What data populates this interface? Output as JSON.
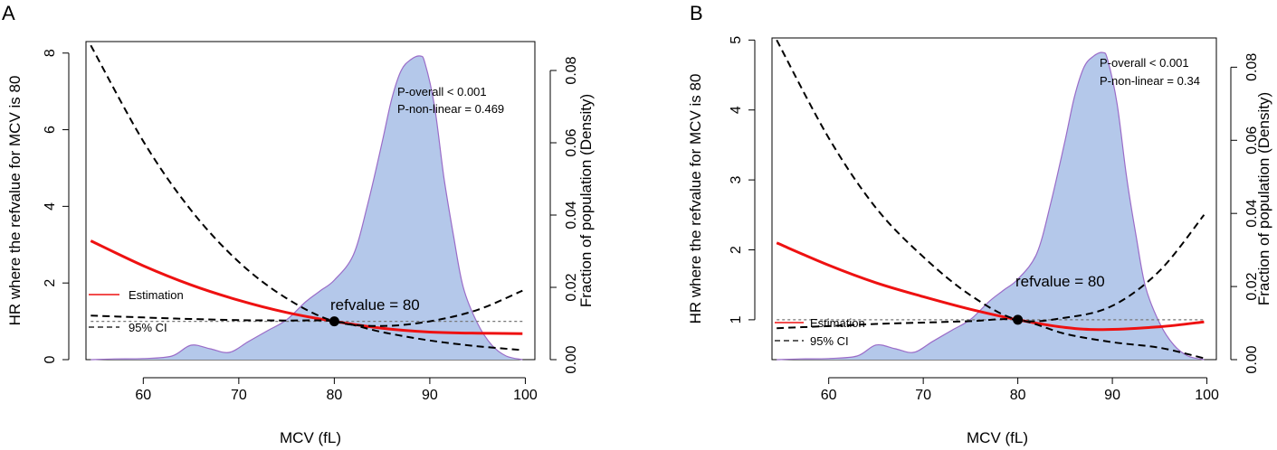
{
  "chart_data": [
    {
      "panel_label": "A",
      "type": "line",
      "xlabel": "MCV (fL)",
      "ylabel": "HR where the refvalue for MCV is 80",
      "y2label": "Fraction of population (Density)",
      "xlim": [
        54,
        101
      ],
      "ylim": [
        0,
        8.3
      ],
      "y2lim": [
        0,
        0.088
      ],
      "xticks": [
        60,
        70,
        80,
        90,
        100
      ],
      "yticks": [
        0,
        2,
        4,
        6,
        8
      ],
      "y2ticks": [
        "0.00",
        "0.02",
        "0.04",
        "0.06",
        "0.08"
      ],
      "refvalue": 80,
      "ref_label": "refvalue = 80",
      "p_overall": "P-overall < 0.001",
      "p_nonlinear": "P-non-linear = 0.469",
      "legend": [
        "Estimation",
        "95% CI"
      ],
      "colors": {
        "estimation": "#ee1111",
        "ci": "#000000",
        "density_fill": "#b4c8ea",
        "density_line": "#9a6cc8",
        "refline": "#777777"
      },
      "series": [
        {
          "name": "Estimation",
          "x": [
            54.5,
            60,
            65,
            70,
            75,
            80,
            85,
            90,
            95,
            99.7
          ],
          "values": [
            3.1,
            2.45,
            1.95,
            1.55,
            1.23,
            1.0,
            0.82,
            0.72,
            0.69,
            0.68
          ]
        },
        {
          "name": "95% CI upper",
          "x": [
            54.5,
            60,
            65,
            70,
            75,
            80,
            85,
            90,
            95,
            99.7
          ],
          "values": [
            8.2,
            5.7,
            3.9,
            2.55,
            1.6,
            1.0,
            0.88,
            1.0,
            1.3,
            1.8
          ]
        },
        {
          "name": "95% CI lower",
          "x": [
            54.5,
            60,
            65,
            70,
            75,
            80,
            85,
            90,
            95,
            99.7
          ],
          "values": [
            1.15,
            1.1,
            1.06,
            1.03,
            1.02,
            1.0,
            0.72,
            0.5,
            0.35,
            0.25
          ]
        }
      ],
      "density": {
        "x": [
          54.5,
          57,
          60,
          63,
          65,
          67,
          69,
          71,
          73,
          75,
          77,
          78.5,
          80,
          82,
          83.5,
          85,
          86,
          87,
          88,
          89,
          89.5,
          90.5,
          91.5,
          92.5,
          93.5,
          95,
          96.5,
          98,
          99.7
        ],
        "values": [
          0.0,
          0.0002,
          0.0003,
          0.001,
          0.004,
          0.003,
          0.002,
          0.005,
          0.008,
          0.011,
          0.016,
          0.019,
          0.022,
          0.029,
          0.043,
          0.06,
          0.072,
          0.08,
          0.083,
          0.084,
          0.082,
          0.07,
          0.05,
          0.034,
          0.02,
          0.01,
          0.004,
          0.001,
          0.0
        ]
      }
    },
    {
      "panel_label": "B",
      "type": "line",
      "xlabel": "MCV (fL)",
      "ylabel": "HR where the refvalue for MCV is 80",
      "y2label": "Fraction of population (Density)",
      "xlim": [
        54,
        101
      ],
      "ylim": [
        0.43,
        5.03
      ],
      "y2lim": [
        0,
        0.088
      ],
      "xticks": [
        60,
        70,
        80,
        90,
        100
      ],
      "yticks": [
        1,
        2,
        3,
        4,
        5
      ],
      "y2ticks": [
        "0.00",
        "0.02",
        "0.04",
        "0.06",
        "0.08"
      ],
      "refvalue": 80,
      "ref_label": "refvalue = 80",
      "p_overall": "P-overall < 0.001",
      "p_nonlinear": "P-non-linear = 0.34",
      "legend": [
        "Estimation",
        "95% CI"
      ],
      "colors": {
        "estimation": "#ee1111",
        "ci": "#000000",
        "density_fill": "#b4c8ea",
        "density_line": "#9a6cc8",
        "refline": "#777777"
      },
      "series": [
        {
          "name": "Estimation",
          "x": [
            54.5,
            60,
            65,
            70,
            75,
            80,
            85,
            89,
            95,
            99.7
          ],
          "values": [
            2.1,
            1.78,
            1.53,
            1.33,
            1.15,
            1.0,
            0.89,
            0.86,
            0.9,
            0.97
          ]
        },
        {
          "name": "95% CI upper",
          "x": [
            54.5,
            60,
            65,
            70,
            75,
            80,
            85,
            90,
            95,
            99.7
          ],
          "values": [
            5.0,
            3.6,
            2.6,
            1.9,
            1.35,
            1.0,
            1.03,
            1.2,
            1.7,
            2.5
          ]
        },
        {
          "name": "95% CI lower",
          "x": [
            54.5,
            60,
            65,
            70,
            75,
            80,
            85,
            90,
            95,
            99.7
          ],
          "values": [
            0.88,
            0.91,
            0.94,
            0.96,
            0.98,
            1.0,
            0.8,
            0.68,
            0.6,
            0.45
          ]
        }
      ],
      "density": {
        "x": [
          54.5,
          57,
          60,
          63,
          65,
          67,
          69,
          71,
          73,
          75,
          77,
          78.5,
          80,
          82,
          83.5,
          85,
          86,
          87,
          88,
          89,
          89.5,
          90.5,
          91.5,
          92.5,
          93.5,
          95,
          96.5,
          98,
          99.7
        ],
        "values": [
          0.0,
          0.0002,
          0.0003,
          0.001,
          0.004,
          0.003,
          0.002,
          0.005,
          0.008,
          0.011,
          0.016,
          0.019,
          0.022,
          0.029,
          0.043,
          0.06,
          0.072,
          0.08,
          0.083,
          0.084,
          0.082,
          0.07,
          0.05,
          0.034,
          0.02,
          0.01,
          0.004,
          0.001,
          0.0
        ]
      }
    }
  ]
}
